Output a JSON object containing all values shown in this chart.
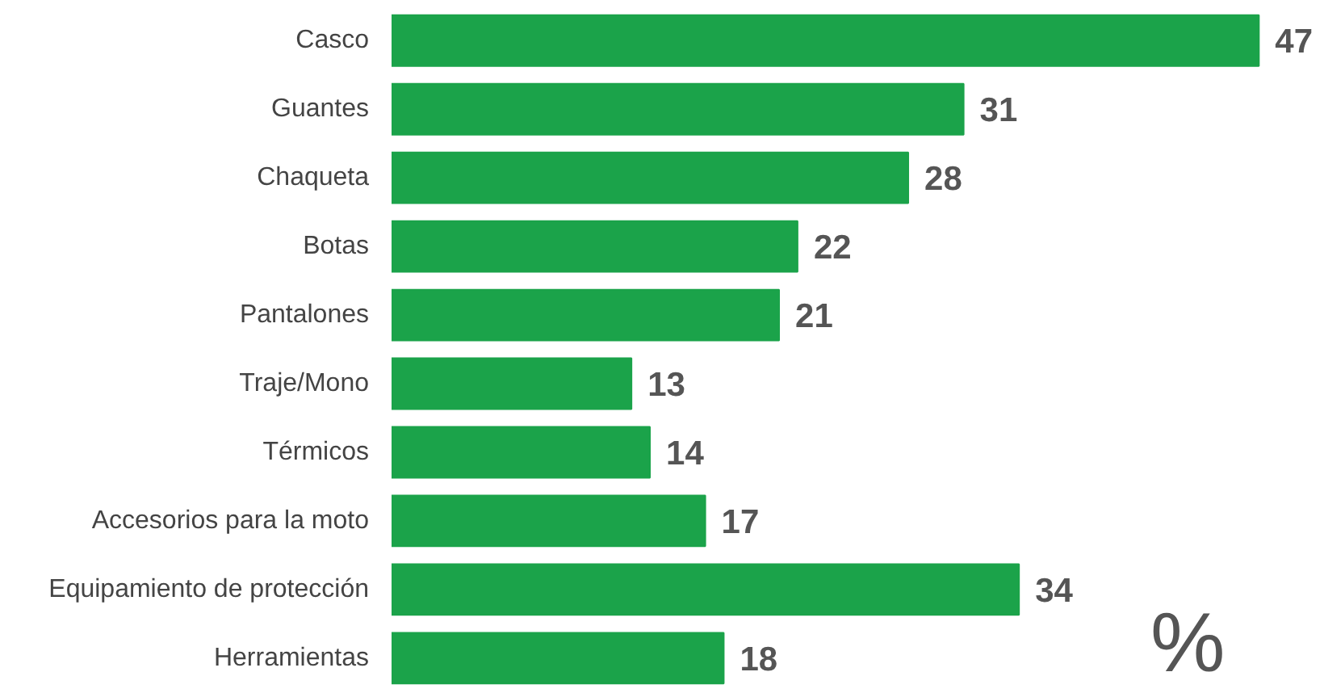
{
  "chart_data": {
    "type": "bar",
    "orientation": "horizontal",
    "categories": [
      "Casco",
      "Guantes",
      "Chaqueta",
      "Botas",
      "Pantalones",
      "Traje/Mono",
      "Térmicos",
      "Accesorios para la moto",
      "Equipamiento de protección",
      "Herramientas"
    ],
    "values": [
      47,
      31,
      28,
      22,
      21,
      13,
      14,
      17,
      34,
      18
    ],
    "color": "#1ba34a",
    "data_labels": true,
    "grid": false,
    "annotations": [
      "%"
    ]
  }
}
